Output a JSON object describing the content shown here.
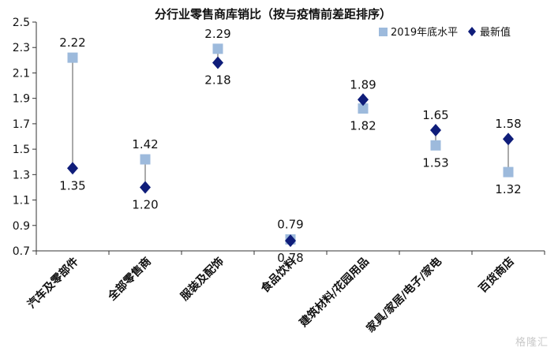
{
  "chart_data": {
    "type": "scatter",
    "title": "分行业零售商库销比（按与疫情前差距排序）",
    "categories": [
      "汽车及零部件",
      "全部零售商",
      "服装及配饰",
      "食品饮料",
      "建筑材料/花园用品",
      "家具/家居/电子/家电",
      "百货商店"
    ],
    "series": [
      {
        "name": "2019年底水平",
        "marker": "square",
        "color": "#9dbadc",
        "values": [
          2.22,
          1.42,
          2.29,
          0.79,
          1.82,
          1.53,
          1.32
        ]
      },
      {
        "name": "最新值",
        "marker": "diamond",
        "color": "#0f1d7a",
        "values": [
          1.35,
          1.2,
          2.18,
          0.78,
          1.89,
          1.65,
          1.58
        ]
      }
    ],
    "value_labels": {
      "2019年底水平": [
        "2.22",
        "1.42",
        "2.29",
        "0.79",
        "1.82",
        "1.53",
        "1.32"
      ],
      "最新值": [
        "1.35",
        "1.20",
        "2.18",
        "0.78",
        "1.89",
        "1.65",
        "1.58"
      ]
    },
    "ylim": [
      0.7,
      2.5
    ],
    "yticks": [
      "0.7",
      "0.9",
      "1.1",
      "1.3",
      "1.5",
      "1.7",
      "1.9",
      "2.1",
      "2.3",
      "2.5"
    ],
    "grid": false,
    "legend_position": "top-right"
  },
  "watermark": "格隆汇"
}
